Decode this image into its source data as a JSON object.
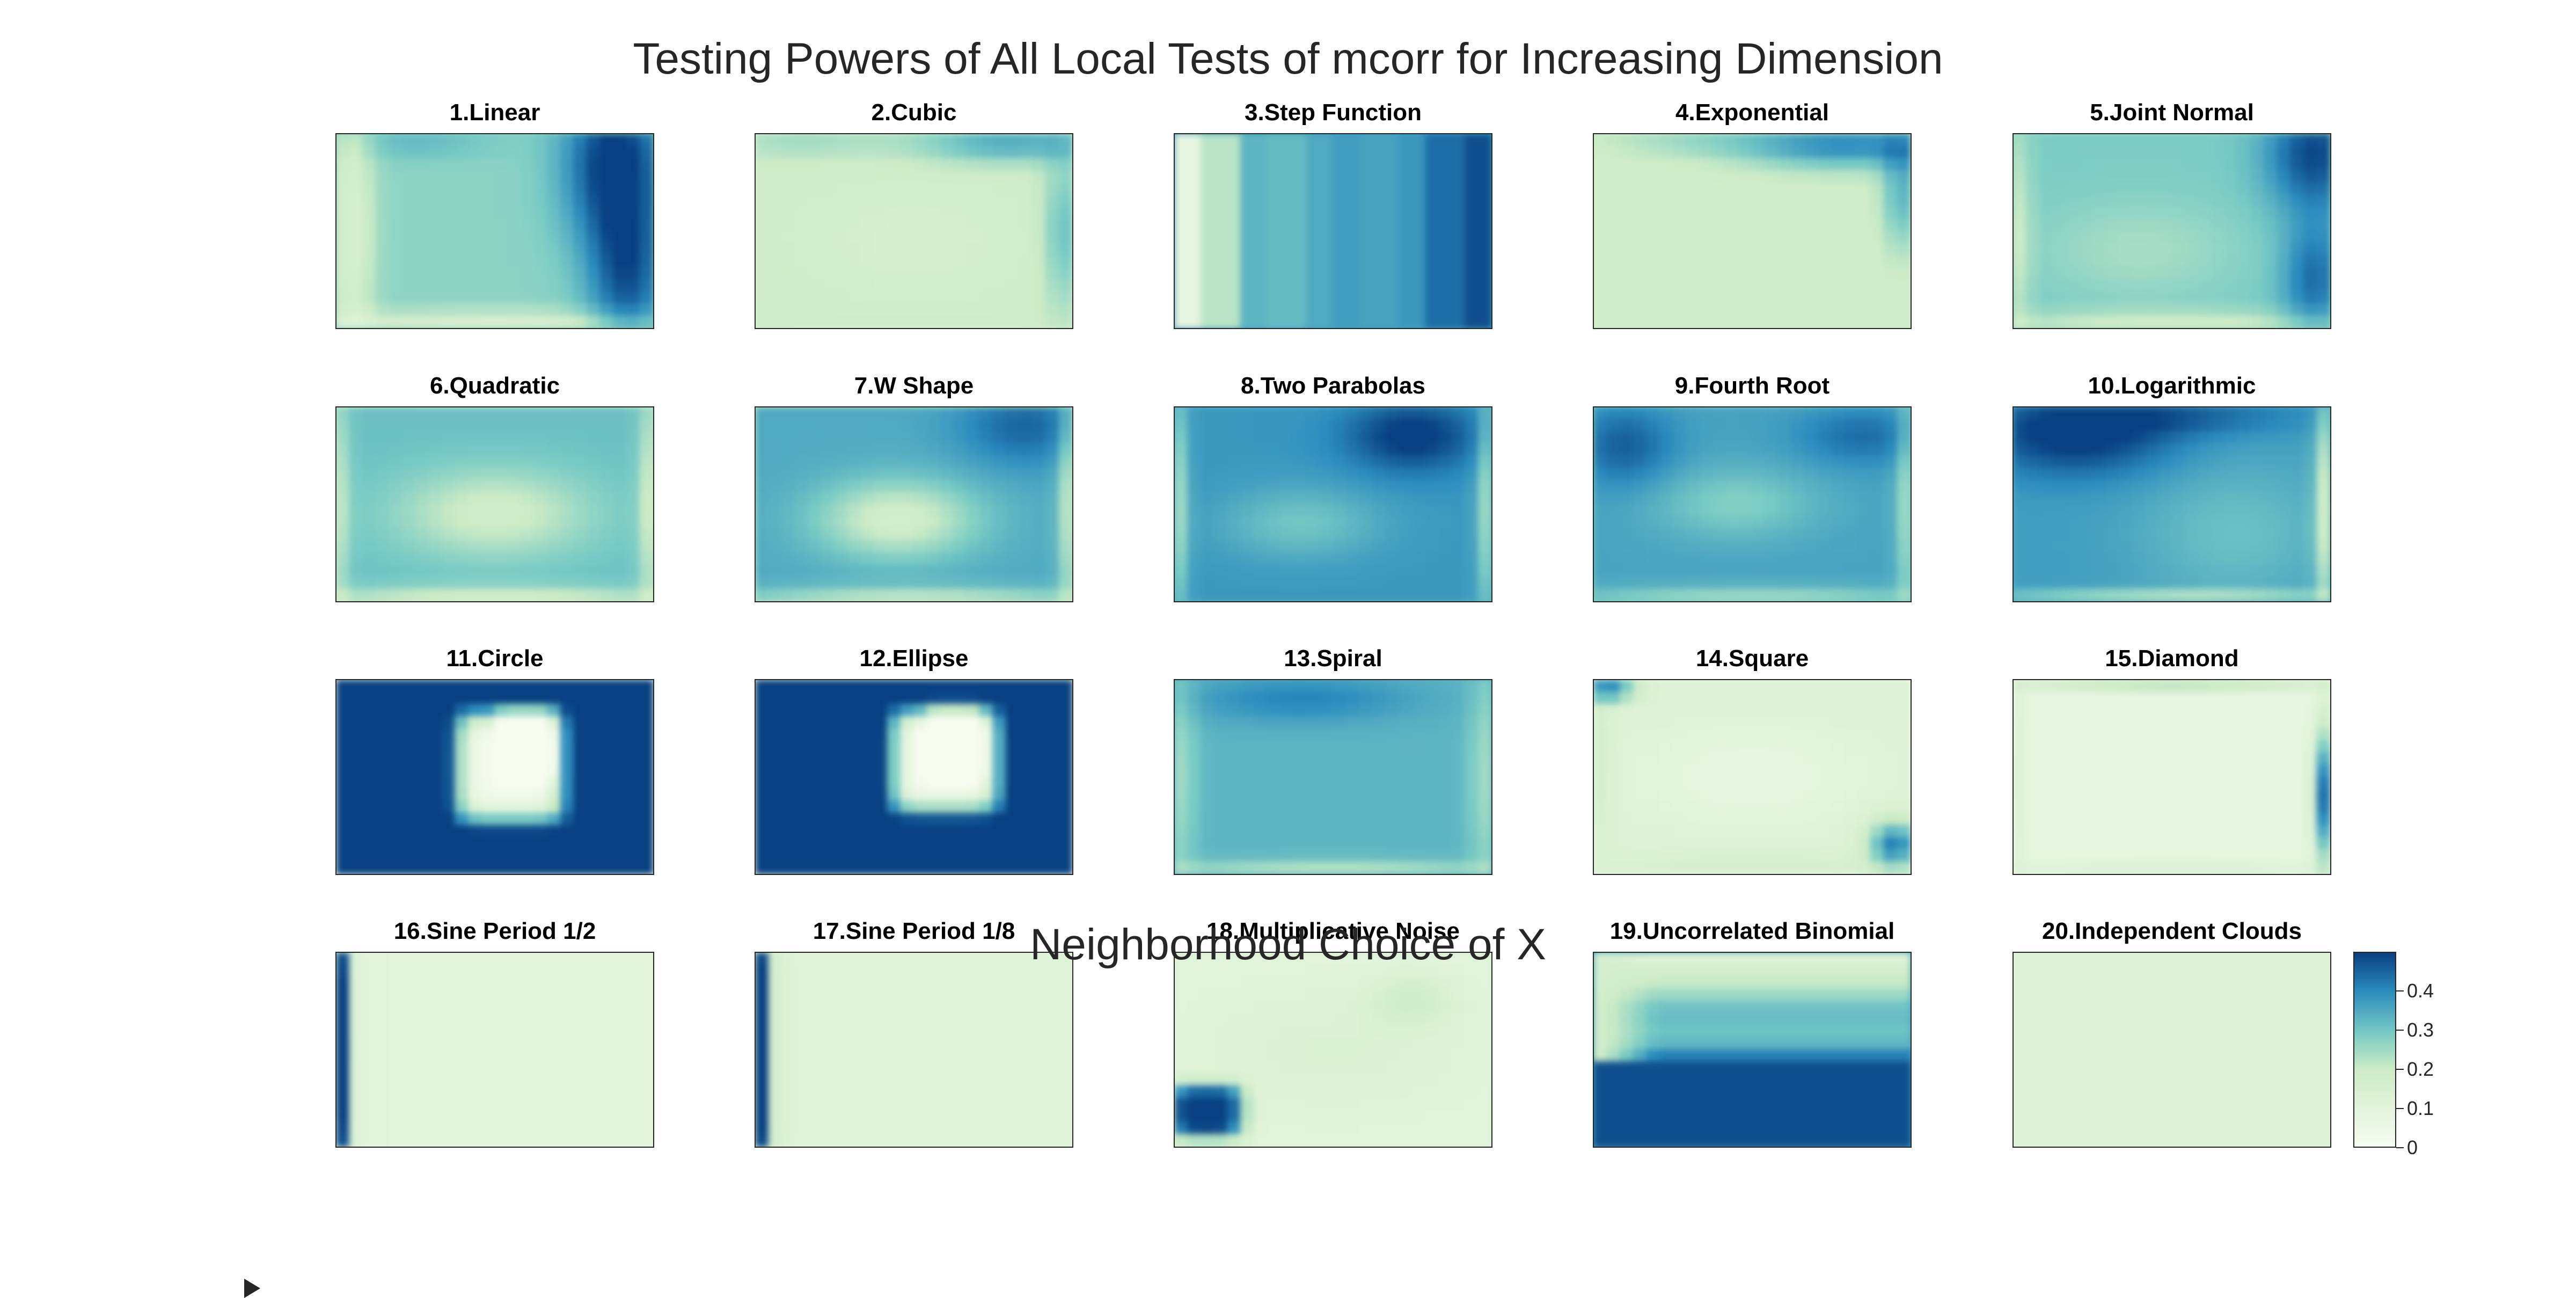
{
  "title": "Testing Powers of All Local Tests of mcorr for Increasing Dimension",
  "xlabel": "Neighborhood Choice of X",
  "colorscale": [
    "#f7fcf0",
    "#ccebc5",
    "#7bccc4",
    "#2b8cbe",
    "#084081"
  ],
  "chart_data": {
    "type": "heatmap",
    "title": "Testing Powers of All Local Tests of mcorr for Increasing Dimension",
    "xlabel": "Neighborhood Choice of X",
    "color_range": [
      0,
      0.5
    ],
    "colorbar_ticks": [
      "0",
      "0.1",
      "0.2",
      "0.3",
      "0.4"
    ],
    "colorbar_tick_values": [
      0,
      0.1,
      0.2,
      0.3,
      0.4
    ],
    "panels": [
      {
        "title": "1.Linear",
        "base": 0.27,
        "blobs": [
          [
            0.88,
            0.15,
            0.16,
            0.45,
            0.25
          ],
          [
            0.92,
            0.75,
            0.12,
            0.4,
            0.18
          ],
          [
            0.05,
            0.5,
            0.07,
            0.8,
            -0.12
          ],
          [
            0.5,
            0.97,
            0.6,
            0.06,
            -0.12
          ],
          [
            0.25,
            0.05,
            0.25,
            0.08,
            0.05
          ]
        ]
      },
      {
        "title": "2.Cubic",
        "base": 0.19,
        "blobs": [
          [
            0.8,
            0.05,
            0.3,
            0.1,
            0.16
          ],
          [
            0.97,
            0.5,
            0.06,
            0.4,
            0.12
          ],
          [
            0.15,
            0.05,
            0.25,
            0.07,
            0.06
          ],
          [
            0.5,
            0.55,
            0.35,
            0.3,
            -0.04
          ]
        ]
      },
      {
        "title": "3.Step Function",
        "base": 0.36,
        "cols": [
          0.08,
          0.22,
          0.33,
          0.32,
          0.35,
          0.37,
          0.36,
          0.38,
          0.44,
          0.48
        ]
      },
      {
        "title": "4.Exponential",
        "base": 0.18,
        "blobs": [
          [
            0.8,
            0.06,
            0.35,
            0.12,
            0.22
          ],
          [
            0.97,
            0.3,
            0.06,
            0.3,
            0.15
          ],
          [
            0.3,
            0.05,
            0.3,
            0.06,
            0.06
          ]
        ]
      },
      {
        "title": "5.Joint Normal",
        "base": 0.29,
        "blobs": [
          [
            0.95,
            0.1,
            0.15,
            0.3,
            0.2
          ],
          [
            0.95,
            0.75,
            0.1,
            0.3,
            0.15
          ],
          [
            0.4,
            0.6,
            0.3,
            0.25,
            -0.05
          ],
          [
            0.5,
            0.97,
            0.6,
            0.06,
            -0.1
          ],
          [
            0.02,
            0.5,
            0.04,
            0.6,
            -0.08
          ]
        ]
      },
      {
        "title": "6.Quadratic",
        "base": 0.31,
        "blobs": [
          [
            0.5,
            0.55,
            0.3,
            0.22,
            -0.13
          ],
          [
            0.5,
            0.97,
            0.6,
            0.05,
            -0.12
          ],
          [
            0.98,
            0.5,
            0.03,
            0.6,
            -0.1
          ],
          [
            0.02,
            0.5,
            0.03,
            0.6,
            -0.08
          ]
        ]
      },
      {
        "title": "7.W Shape",
        "base": 0.35,
        "blobs": [
          [
            0.45,
            0.58,
            0.25,
            0.2,
            -0.18
          ],
          [
            0.85,
            0.1,
            0.2,
            0.2,
            0.1
          ],
          [
            0.5,
            0.97,
            0.6,
            0.05,
            -0.12
          ],
          [
            0.98,
            0.5,
            0.03,
            0.6,
            -0.12
          ]
        ]
      },
      {
        "title": "8.Two Parabolas",
        "base": 0.38,
        "blobs": [
          [
            0.75,
            0.15,
            0.2,
            0.18,
            0.14
          ],
          [
            0.4,
            0.6,
            0.25,
            0.18,
            -0.08
          ],
          [
            0.02,
            0.5,
            0.03,
            0.6,
            -0.12
          ],
          [
            0.98,
            0.5,
            0.03,
            0.6,
            -0.12
          ]
        ]
      },
      {
        "title": "9.Fourth Root",
        "base": 0.36,
        "blobs": [
          [
            0.1,
            0.2,
            0.15,
            0.2,
            0.1
          ],
          [
            0.85,
            0.15,
            0.2,
            0.15,
            0.08
          ],
          [
            0.45,
            0.5,
            0.25,
            0.18,
            -0.08
          ],
          [
            0.5,
            0.97,
            0.6,
            0.05,
            -0.1
          ],
          [
            0.98,
            0.5,
            0.03,
            0.6,
            -0.1
          ]
        ]
      },
      {
        "title": "10.Logarithmic",
        "base": 0.37,
        "blobs": [
          [
            0.2,
            0.15,
            0.3,
            0.2,
            0.15
          ],
          [
            0.5,
            0.05,
            0.4,
            0.1,
            0.08
          ],
          [
            0.7,
            0.65,
            0.3,
            0.35,
            -0.06
          ],
          [
            0.98,
            0.5,
            0.03,
            0.6,
            -0.16
          ],
          [
            0.5,
            0.98,
            0.6,
            0.04,
            -0.12
          ]
        ]
      },
      {
        "title": "11.Circle",
        "base": 0.52,
        "blobs": [
          [
            0.55,
            0.45,
            0.17,
            0.28,
            -0.5,
            6
          ],
          [
            0.6,
            0.33,
            0.1,
            0.2,
            -0.2,
            6
          ]
        ]
      },
      {
        "title": "12.Ellipse",
        "base": 0.52,
        "blobs": [
          [
            0.6,
            0.42,
            0.17,
            0.26,
            -0.5,
            6
          ],
          [
            0.63,
            0.32,
            0.1,
            0.2,
            -0.2,
            6
          ]
        ]
      },
      {
        "title": "13.Spiral",
        "base": 0.33,
        "blobs": [
          [
            0.4,
            0.1,
            0.35,
            0.12,
            0.08
          ],
          [
            0.02,
            0.5,
            0.05,
            0.6,
            -0.08
          ],
          [
            0.98,
            0.5,
            0.05,
            0.6,
            -0.08
          ],
          [
            0.5,
            0.98,
            0.6,
            0.05,
            -0.1
          ]
        ]
      },
      {
        "title": "14.Square",
        "base": 0.12,
        "blobs": [
          [
            0.5,
            0.5,
            0.35,
            0.25,
            -0.05
          ],
          [
            0.95,
            0.85,
            0.08,
            0.12,
            0.3
          ],
          [
            0.05,
            0.05,
            0.08,
            0.06,
            0.3
          ],
          [
            0.02,
            0.4,
            0.04,
            0.4,
            0.05
          ],
          [
            0.5,
            0.95,
            0.5,
            0.06,
            0.04
          ]
        ]
      },
      {
        "title": "15.Diamond",
        "base": 0.08,
        "blobs": [
          [
            0.98,
            0.6,
            0.03,
            0.35,
            0.35
          ],
          [
            0.5,
            0.02,
            0.5,
            0.03,
            0.15
          ],
          [
            0.02,
            0.5,
            0.03,
            0.6,
            0.04
          ],
          [
            0.5,
            0.97,
            0.6,
            0.04,
            0.04
          ]
        ]
      },
      {
        "title": "16.Sine Period 1/2",
        "base": 0.1,
        "blobs": [
          [
            0.02,
            0.5,
            0.025,
            1.5,
            0.42
          ]
        ]
      },
      {
        "title": "17.Sine Period 1/8",
        "base": 0.11,
        "blobs": [
          [
            0.02,
            0.5,
            0.02,
            1.5,
            0.4
          ],
          [
            0.06,
            0.5,
            0.04,
            1.5,
            0.05
          ]
        ]
      },
      {
        "title": "18.Multiplicative Noise",
        "base": 0.1,
        "blobs": [
          [
            0.1,
            0.82,
            0.12,
            0.14,
            0.45,
            4
          ],
          [
            0.75,
            0.25,
            0.12,
            0.12,
            0.08
          ],
          [
            0.5,
            0.5,
            0.4,
            0.3,
            0.03
          ]
        ]
      },
      {
        "title": "19.Uncorrelated Binomial",
        "bands": [
          [
            0.0,
            0.1
          ],
          [
            0.15,
            0.2
          ],
          [
            0.3,
            0.32
          ],
          [
            0.45,
            0.3
          ],
          [
            0.58,
            0.48
          ],
          [
            0.98,
            0.48
          ],
          [
            1.0,
            0.2
          ]
        ],
        "leftcol": 0.16
      },
      {
        "title": "20.Independent Clouds",
        "base": 0.12,
        "blobs": []
      }
    ]
  }
}
